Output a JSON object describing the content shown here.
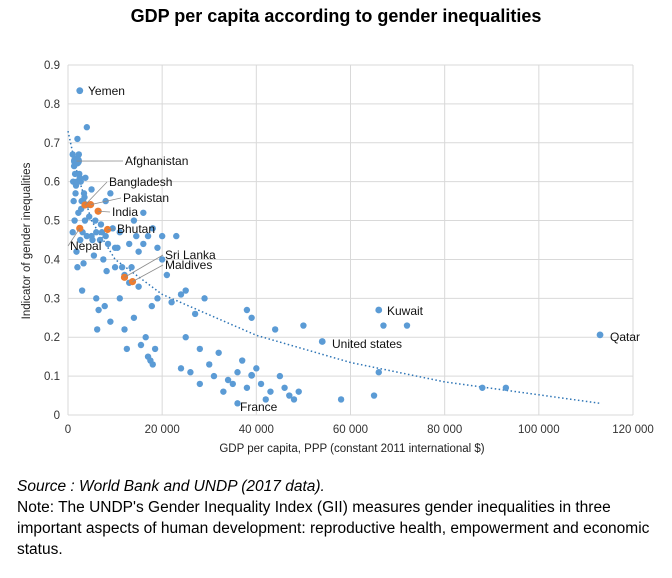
{
  "chart_data": {
    "type": "scatter",
    "title": "GDP per capita according to gender inequalities",
    "xlabel": "GDP per capita, PPP (constant 2011 international $)",
    "ylabel": "Indicator of gender inequalities",
    "xlim": [
      0,
      120000
    ],
    "ylim": [
      0,
      0.9
    ],
    "x_ticks": [
      0,
      20000,
      40000,
      60000,
      80000,
      100000,
      120000
    ],
    "x_tick_labels": [
      "0",
      "20 000",
      "40 000",
      "60 000",
      "80 000",
      "100 000",
      "120 000"
    ],
    "y_ticks": [
      0,
      0.1,
      0.2,
      0.3,
      0.4,
      0.5,
      0.6,
      0.7,
      0.8,
      0.9
    ],
    "y_tick_labels": [
      "0",
      "0.1",
      "0.2",
      "0.3",
      "0.4",
      "0.5",
      "0.6",
      "0.7",
      "0.8",
      "0.9"
    ],
    "grid": true,
    "colors": {
      "point": "#5b9bd5",
      "highlight": "#ed7d31",
      "trend": "#2e75b6",
      "grid": "#d9d9d9"
    },
    "trendline": {
      "type": "power-like",
      "points": [
        [
          0,
          0.73
        ],
        [
          2000,
          0.62
        ],
        [
          5000,
          0.5
        ],
        [
          10000,
          0.4
        ],
        [
          20000,
          0.31
        ],
        [
          40000,
          0.205
        ],
        [
          60000,
          0.135
        ],
        [
          80000,
          0.085
        ],
        [
          100000,
          0.052
        ],
        [
          113000,
          0.03
        ]
      ]
    },
    "highlighted_countries": [
      {
        "name": "Pakistan",
        "x": 4800,
        "y": 0.541
      },
      {
        "name": "Bangladesh",
        "x": 3600,
        "y": 0.54
      },
      {
        "name": "India",
        "x": 6400,
        "y": 0.524
      },
      {
        "name": "Bhutan",
        "x": 8400,
        "y": 0.477
      },
      {
        "name": "Nepal",
        "x": 2500,
        "y": 0.48
      },
      {
        "name": "Sri Lanka",
        "x": 12000,
        "y": 0.354
      },
      {
        "name": "Maldives",
        "x": 13700,
        "y": 0.343
      }
    ],
    "labeled_countries": [
      {
        "name": "Yemen",
        "x": 2500,
        "y": 0.834
      },
      {
        "name": "Afghanistan",
        "x": 1800,
        "y": 0.653
      },
      {
        "name": "Kuwait",
        "x": 66000,
        "y": 0.27
      },
      {
        "name": "United states",
        "x": 54000,
        "y": 0.189
      },
      {
        "name": "France",
        "x": 39000,
        "y": 0.102
      },
      {
        "name": "Qatar",
        "x": 113000,
        "y": 0.206
      }
    ],
    "annotations": [
      {
        "text": "Yemen",
        "target": "Yemen"
      },
      {
        "text": "Afghanistan",
        "target": "Afghanistan"
      },
      {
        "text": "Bangladesh",
        "target": "Bangladesh"
      },
      {
        "text": "Pakistan",
        "target": "Pakistan"
      },
      {
        "text": "India",
        "target": "India"
      },
      {
        "text": "Bhutan",
        "target": "Bhutan"
      },
      {
        "text": "Nepal",
        "target": "Nepal"
      },
      {
        "text": "Sri Lanka",
        "target": "Sri Lanka"
      },
      {
        "text": "Maldives",
        "target": "Maldives"
      },
      {
        "text": "Kuwait",
        "target": "Kuwait"
      },
      {
        "text": "United states",
        "target": "United states"
      },
      {
        "text": "France",
        "target": "France"
      },
      {
        "text": "Qatar",
        "target": "Qatar"
      }
    ],
    "other_points": [
      [
        1000,
        0.47
      ],
      [
        1000,
        0.67
      ],
      [
        1100,
        0.6
      ],
      [
        1200,
        0.55
      ],
      [
        1300,
        0.64
      ],
      [
        1400,
        0.5
      ],
      [
        1500,
        0.62
      ],
      [
        1600,
        0.57
      ],
      [
        1700,
        0.59
      ],
      [
        1800,
        0.42
      ],
      [
        1900,
        0.6
      ],
      [
        2000,
        0.71
      ],
      [
        2000,
        0.38
      ],
      [
        2200,
        0.52
      ],
      [
        2300,
        0.67
      ],
      [
        2400,
        0.62
      ],
      [
        2500,
        0.61
      ],
      [
        2600,
        0.45
      ],
      [
        2700,
        0.6
      ],
      [
        2800,
        0.53
      ],
      [
        2900,
        0.55
      ],
      [
        3000,
        0.32
      ],
      [
        3100,
        0.47
      ],
      [
        3200,
        0.55
      ],
      [
        3300,
        0.39
      ],
      [
        3400,
        0.57
      ],
      [
        3500,
        0.56
      ],
      [
        3600,
        0.5
      ],
      [
        3700,
        0.61
      ],
      [
        4000,
        0.74
      ],
      [
        4000,
        0.46
      ],
      [
        4200,
        0.54
      ],
      [
        4500,
        0.51
      ],
      [
        5000,
        0.58
      ],
      [
        5000,
        0.46
      ],
      [
        5200,
        0.45
      ],
      [
        5500,
        0.41
      ],
      [
        5800,
        0.5
      ],
      [
        6000,
        0.47
      ],
      [
        6000,
        0.3
      ],
      [
        6200,
        0.22
      ],
      [
        6500,
        0.27
      ],
      [
        6800,
        0.45
      ],
      [
        7000,
        0.49
      ],
      [
        7200,
        0.47
      ],
      [
        7500,
        0.4
      ],
      [
        7800,
        0.28
      ],
      [
        8000,
        0.55
      ],
      [
        8000,
        0.46
      ],
      [
        8200,
        0.37
      ],
      [
        8500,
        0.44
      ],
      [
        9000,
        0.57
      ],
      [
        9000,
        0.24
      ],
      [
        9500,
        0.48
      ],
      [
        10000,
        0.43
      ],
      [
        10000,
        0.38
      ],
      [
        10500,
        0.43
      ],
      [
        11000,
        0.47
      ],
      [
        11000,
        0.3
      ],
      [
        11500,
        0.38
      ],
      [
        12000,
        0.36
      ],
      [
        12000,
        0.22
      ],
      [
        12500,
        0.17
      ],
      [
        13000,
        0.44
      ],
      [
        13000,
        0.34
      ],
      [
        13500,
        0.38
      ],
      [
        14000,
        0.5
      ],
      [
        14000,
        0.25
      ],
      [
        14500,
        0.46
      ],
      [
        15000,
        0.42
      ],
      [
        15000,
        0.33
      ],
      [
        15500,
        0.18
      ],
      [
        16000,
        0.52
      ],
      [
        16000,
        0.44
      ],
      [
        16500,
        0.2
      ],
      [
        17000,
        0.46
      ],
      [
        17000,
        0.15
      ],
      [
        17500,
        0.14
      ],
      [
        17800,
        0.28
      ],
      [
        18000,
        0.48
      ],
      [
        18000,
        0.13
      ],
      [
        18500,
        0.17
      ],
      [
        19000,
        0.43
      ],
      [
        19000,
        0.3
      ],
      [
        20000,
        0.46
      ],
      [
        20000,
        0.4
      ],
      [
        21000,
        0.36
      ],
      [
        22000,
        0.29
      ],
      [
        23000,
        0.46
      ],
      [
        24000,
        0.12
      ],
      [
        24000,
        0.31
      ],
      [
        25000,
        0.32
      ],
      [
        25000,
        0.2
      ],
      [
        26000,
        0.11
      ],
      [
        27000,
        0.26
      ],
      [
        28000,
        0.17
      ],
      [
        28000,
        0.08
      ],
      [
        29000,
        0.3
      ],
      [
        30000,
        0.13
      ],
      [
        31000,
        0.1
      ],
      [
        32000,
        0.16
      ],
      [
        33000,
        0.06
      ],
      [
        34000,
        0.09
      ],
      [
        35000,
        0.08
      ],
      [
        36000,
        0.11
      ],
      [
        36000,
        0.03
      ],
      [
        37000,
        0.14
      ],
      [
        38000,
        0.27
      ],
      [
        38000,
        0.07
      ],
      [
        39000,
        0.25
      ],
      [
        40000,
        0.12
      ],
      [
        41000,
        0.08
      ],
      [
        42000,
        0.04
      ],
      [
        43000,
        0.06
      ],
      [
        44000,
        0.22
      ],
      [
        45000,
        0.1
      ],
      [
        46000,
        0.07
      ],
      [
        47000,
        0.05
      ],
      [
        48000,
        0.04
      ],
      [
        49000,
        0.06
      ],
      [
        50000,
        0.23
      ],
      [
        58000,
        0.04
      ],
      [
        65000,
        0.05
      ],
      [
        67000,
        0.23
      ],
      [
        72000,
        0.23
      ],
      [
        88000,
        0.07
      ],
      [
        93000,
        0.07
      ],
      [
        66000,
        0.11
      ]
    ]
  },
  "footer": {
    "source": "Source : World Bank and UNDP (2017 data).",
    "note": "Note: The UNDP's Gender Inequality Index (GII) measures gender inequalities in three important aspects of human development: reproductive health, empowerment and economic status."
  }
}
